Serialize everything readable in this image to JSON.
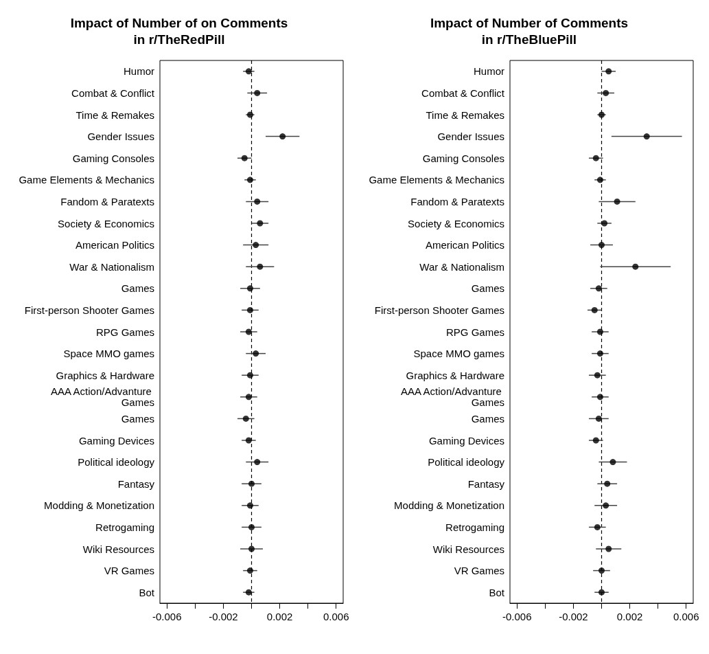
{
  "chart_data": [
    {
      "type": "scatter",
      "orientation": "horizontal",
      "title": "Impact of Number of on Comments\nin r/TheRedPill",
      "color": "#000000",
      "marker": "circle",
      "grid": false,
      "categories": [
        "Humor",
        "Combat & Conflict",
        "Time & Remakes",
        "Gender Issues",
        "Gaming Consoles",
        "Game Elements & Mechanics",
        "Fandom & Paratexts",
        "Society & Economics",
        "American Politics",
        "War & Nationalism",
        "Games",
        "First-person Shooter Games",
        "RPG Games",
        "Space MMO games",
        "Graphics & Hardware",
        "AAA Action/Advanture Games",
        "Games",
        "Gaming Devices",
        "Political ideology",
        "Fantasy",
        "Modding & Monetization",
        "Retrogaming",
        "Wiki Resources",
        "VR Games",
        "Bot"
      ],
      "values": [
        -0.0002,
        0.0004,
        -0.0001,
        0.0022,
        -0.0005,
        -0.0001,
        0.0004,
        0.0006,
        0.0003,
        0.0006,
        -0.0001,
        -0.0001,
        -0.0002,
        0.0003,
        -0.0001,
        -0.0002,
        -0.0004,
        -0.0002,
        0.0004,
        0.0,
        -0.0001,
        0.0,
        0.0,
        -0.0001,
        -0.0002
      ],
      "errors": [
        0.0004,
        0.0007,
        0.0003,
        0.0012,
        0.0005,
        0.0004,
        0.0008,
        0.0006,
        0.0009,
        0.001,
        0.0007,
        0.0006,
        0.0006,
        0.0007,
        0.0006,
        0.0006,
        0.0006,
        0.0005,
        0.0008,
        0.0007,
        0.0006,
        0.0007,
        0.0008,
        0.0005,
        0.0004
      ],
      "xlim": [
        -0.0065,
        0.0065
      ],
      "xticks": [
        -0.006,
        {
          "value": -0.004,
          "label": null
        },
        -0.002,
        {
          "value": 0,
          "label": null
        },
        0.002,
        {
          "value": 0.004,
          "label": null
        },
        0.006
      ],
      "ref_lines": [
        {
          "axis": "x",
          "value": 0,
          "label": null,
          "line_style": "dashed",
          "color": "#000000"
        }
      ]
    },
    {
      "type": "scatter",
      "orientation": "horizontal",
      "title": "Impact of Number of Comments\nin r/TheBluePill",
      "color": "#000000",
      "marker": "circle",
      "grid": false,
      "categories": [
        "Humor",
        "Combat & Conflict",
        "Time & Remakes",
        "Gender Issues",
        "Gaming Consoles",
        "Game Elements & Mechanics",
        "Fandom & Paratexts",
        "Society & Economics",
        "American Politics",
        "War & Nationalism",
        "Games",
        "First-person Shooter Games",
        "RPG Games",
        "Space MMO games",
        "Graphics & Hardware",
        "AAA Action/Advanture Games",
        "Games",
        "Gaming Devices",
        "Political ideology",
        "Fantasy",
        "Modding & Monetization",
        "Retrogaming",
        "Wiki Resources",
        "VR Games",
        "Bot"
      ],
      "values": [
        0.0005,
        0.0003,
        0.0,
        0.0032,
        -0.0004,
        -0.0001,
        0.0011,
        0.0002,
        0.0,
        0.0024,
        -0.0002,
        -0.0005,
        -0.0001,
        -0.0001,
        -0.0003,
        -0.0001,
        -0.0002,
        -0.0004,
        0.0008,
        0.0004,
        0.0003,
        -0.0003,
        0.0005,
        0.0,
        0.0
      ],
      "errors": [
        0.0005,
        0.0006,
        0.0003,
        0.0025,
        0.0005,
        0.0004,
        0.0013,
        0.0005,
        0.0008,
        0.0025,
        0.0006,
        0.0005,
        0.0006,
        0.0006,
        0.0006,
        0.0006,
        0.0007,
        0.0005,
        0.001,
        0.0007,
        0.0008,
        0.0006,
        0.0009,
        0.0006,
        0.0005
      ],
      "xlim": [
        -0.0065,
        0.0065
      ],
      "xticks": [
        -0.006,
        {
          "value": -0.004,
          "label": null
        },
        -0.002,
        {
          "value": 0,
          "label": null
        },
        0.002,
        {
          "value": 0.004,
          "label": null
        },
        0.006
      ],
      "ref_lines": [
        {
          "axis": "x",
          "value": 0,
          "label": null,
          "line_style": "dashed",
          "color": "#000000"
        }
      ]
    }
  ]
}
